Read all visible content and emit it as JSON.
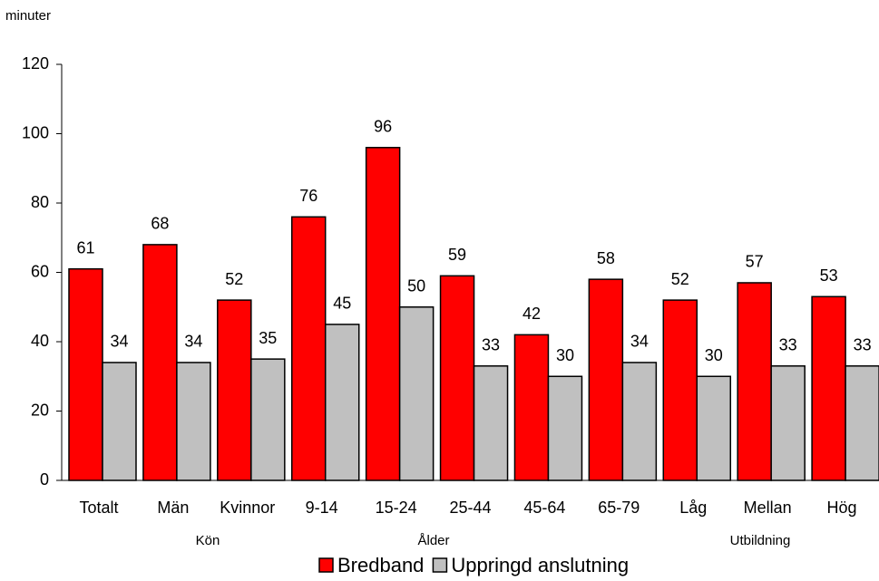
{
  "chart_data": {
    "type": "bar",
    "y_label": "minuter",
    "categories": [
      "Totalt",
      "Män",
      "Kvinnor",
      "9-14",
      "15-24",
      "25-44",
      "45-64",
      "65-79",
      "Låg",
      "Mellan",
      "Hög"
    ],
    "group_labels": [
      "Kön",
      "Ålder",
      "Utbildning"
    ],
    "series": [
      {
        "name": "Bredband",
        "color": "#ff0000",
        "values": [
          61,
          68,
          52,
          76,
          96,
          59,
          42,
          58,
          52,
          57,
          53
        ]
      },
      {
        "name": "Uppringd anslutning",
        "color": "#c0c0c0",
        "values": [
          34,
          34,
          35,
          45,
          50,
          33,
          30,
          34,
          30,
          33,
          33
        ]
      }
    ],
    "ylim": [
      0,
      120
    ],
    "yticks": [
      0,
      20,
      40,
      60,
      80,
      100,
      120
    ],
    "grid": false,
    "legend": "bottom"
  }
}
